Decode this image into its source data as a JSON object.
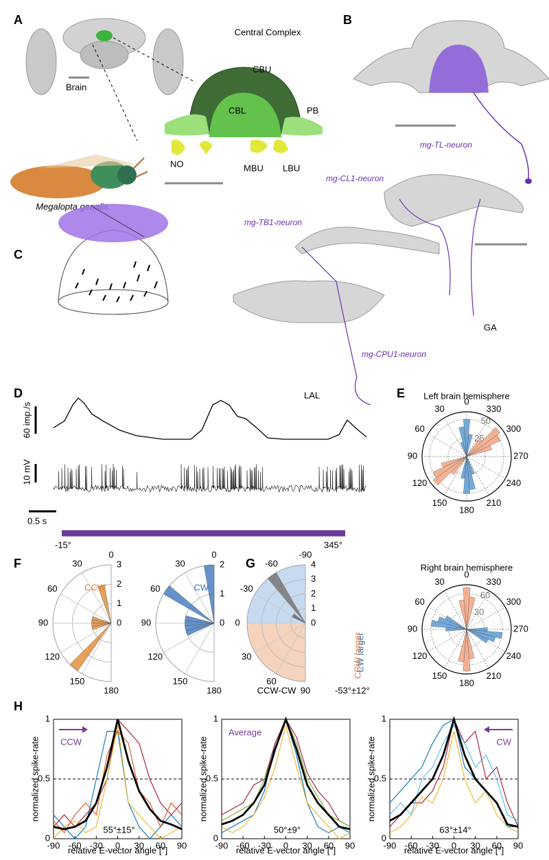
{
  "figure": {
    "panel_labels": [
      "A",
      "B",
      "C",
      "D",
      "E",
      "F",
      "G",
      "H"
    ],
    "a": {
      "title": "Central Complex",
      "brain": "Brain",
      "regions": [
        "CBU",
        "CBL",
        "PB",
        "NO",
        "MBU",
        "LBU"
      ],
      "species": "Megalopta genalis"
    },
    "b": {
      "neurons": [
        "mg-TL-neuron",
        "mg-CL1-neuron",
        "mg-TB1-neuron",
        "mg-CPU1-neuron"
      ],
      "regions": [
        "GA",
        "LAL"
      ]
    },
    "d": {
      "scale_rate": {
        "value": 60,
        "label": "60 imp./s"
      },
      "scale_voltage": {
        "value": 10,
        "label": "10 mV"
      },
      "scale_time": {
        "value": 0.5,
        "label": "0.5 s"
      },
      "stimulus_start": "-15°",
      "stimulus_end": "345°"
    },
    "g": {
      "cw": "CW larger",
      "ccw": "CCW larger",
      "xlabel": "CCW-CW",
      "mean": "-53°±12°"
    }
  },
  "chart_data": [
    {
      "type": "line",
      "color": "#000000",
      "x": [
        0,
        0.2,
        0.35,
        0.45,
        0.55,
        0.7,
        0.9,
        1.2,
        1.5,
        2.0,
        2.5,
        2.7,
        2.9,
        3.05,
        3.2,
        3.35,
        3.5,
        3.7,
        3.9,
        4.2,
        4.6,
        5.0,
        5.2,
        5.35,
        5.5,
        5.7
      ],
      "values": [
        25,
        40,
        75,
        90,
        80,
        55,
        40,
        20,
        8,
        0,
        0,
        20,
        75,
        85,
        75,
        50,
        45,
        25,
        3,
        0,
        0,
        0,
        10,
        42,
        25,
        5
      ]
    },
    {
      "type": "rose",
      "title": "Left brain hemisphere",
      "angle_zero": "top",
      "half": false,
      "angle_ticks": [
        0,
        30,
        60,
        90,
        120,
        150,
        180,
        210,
        240,
        270,
        300,
        330
      ],
      "rlim": [
        0,
        60
      ],
      "rticks": [
        25,
        50
      ],
      "series": [
        {
          "color": "#5b9bd5",
          "angles": [
            350,
            0,
            10,
            20,
            170,
            180,
            190,
            200
          ],
          "values": [
            30,
            50,
            40,
            20,
            30,
            50,
            45,
            25
          ]
        },
        {
          "color": "#f4a582",
          "angles": [
            290,
            300,
            310,
            320,
            110,
            120,
            130,
            140
          ],
          "values": [
            35,
            50,
            55,
            30,
            35,
            50,
            55,
            30
          ]
        }
      ]
    },
    {
      "type": "rose",
      "title": "Right brain hemisphere",
      "angle_zero": "top",
      "half": false,
      "angle_ticks": [
        0,
        30,
        60,
        90,
        120,
        150,
        180,
        210,
        240,
        270,
        300,
        330
      ],
      "rlim": [
        0,
        75
      ],
      "rticks": [
        30,
        60
      ],
      "series": [
        {
          "color": "#f4a582",
          "angles": [
            350,
            0,
            10,
            170,
            180,
            190
          ],
          "values": [
            55,
            70,
            50,
            55,
            70,
            50
          ]
        },
        {
          "color": "#5b9bd5",
          "angles": [
            60,
            70,
            80,
            90,
            240,
            250,
            260,
            270
          ],
          "values": [
            40,
            50,
            60,
            35,
            40,
            50,
            60,
            35
          ]
        }
      ]
    },
    {
      "type": "rose",
      "title": "CCW",
      "title_color": "#e07b39",
      "angle_zero": "top",
      "half": true,
      "angle_ticks": [
        0,
        30,
        60,
        90,
        120,
        150,
        180
      ],
      "rlim": [
        0,
        3
      ],
      "rticks": [
        0,
        1,
        2,
        3
      ],
      "series": [
        {
          "color": "#e0913f",
          "angles": [
            15,
            75,
            85,
            95,
            105,
            140
          ],
          "values": [
            2,
            1,
            1,
            1,
            1,
            3
          ]
        }
      ]
    },
    {
      "type": "rose",
      "title": "CW",
      "title_color": "#2f78c0",
      "angle_zero": "top",
      "half": true,
      "angle_ticks": [
        0,
        30,
        60,
        90,
        120,
        150,
        180
      ],
      "rlim": [
        0,
        2
      ],
      "rticks": [
        0,
        1,
        2
      ],
      "series": [
        {
          "color": "#4a7fc1",
          "angles": [
            5,
            55,
            80,
            90,
            100,
            110
          ],
          "values": [
            2,
            2,
            1,
            1,
            1,
            1
          ]
        }
      ]
    },
    {
      "type": "rose",
      "angle_zero": "left",
      "half": true,
      "angle_ticks": [
        -90,
        -60,
        -30,
        0,
        30,
        60,
        90
      ],
      "rlim": [
        0,
        4
      ],
      "rticks": [
        0,
        1,
        2,
        3,
        4
      ],
      "series": [
        {
          "color": "#777777",
          "angles": [
            -55,
            -35,
            -30
          ],
          "values": [
            4,
            1,
            1
          ]
        }
      ]
    },
    {
      "type": "line",
      "xlabel": "relative E-vector angle [°]",
      "ylabel": "normalized spike-rate",
      "annotation": "CCW",
      "summary": "55°±15°",
      "xlim": [
        -90,
        90
      ],
      "ylim": [
        0,
        1
      ],
      "xticks": [
        -90,
        -60,
        -30,
        0,
        30,
        60,
        90
      ],
      "yticks": [
        0,
        0.5,
        1
      ],
      "hline": 0.5,
      "x": [
        -90,
        -75,
        -60,
        -45,
        -30,
        -15,
        0,
        15,
        30,
        45,
        60,
        75,
        90
      ],
      "series": [
        {
          "color": "#0072bd",
          "values": [
            0.2,
            0.1,
            0,
            0.1,
            0.5,
            0.9,
            0.9,
            0.3,
            0.1,
            0,
            0.1,
            0.2,
            0.1
          ]
        },
        {
          "color": "#a2142f",
          "values": [
            0.1,
            0.2,
            0.1,
            0.2,
            0.3,
            0.5,
            1,
            0.9,
            0.8,
            0.5,
            0.3,
            0.2,
            0.3
          ]
        },
        {
          "color": "#edb120",
          "values": [
            0,
            0.1,
            0.15,
            0.05,
            0.1,
            0.5,
            0.95,
            0.3,
            0.2,
            0.1,
            0,
            0.05,
            0.1
          ]
        },
        {
          "color": "#d95319",
          "values": [
            0.15,
            0.05,
            0.2,
            0.3,
            0.2,
            0.7,
            0.9,
            0.8,
            0.4,
            0.3,
            0.1,
            0.3,
            0.2
          ]
        },
        {
          "color": "#000000",
          "values": [
            0.1,
            0.08,
            0.1,
            0.15,
            0.3,
            0.6,
            1,
            0.65,
            0.4,
            0.25,
            0.15,
            0.12,
            0.08
          ]
        }
      ]
    },
    {
      "type": "line",
      "xlabel": "relative E-vector angle [°]",
      "ylabel": "normalized spike-rate",
      "annotation": "Average",
      "summary": "50°±9°",
      "xlim": [
        -90,
        90
      ],
      "ylim": [
        0,
        1
      ],
      "xticks": [
        -90,
        -60,
        -30,
        0,
        30,
        60,
        90
      ],
      "yticks": [
        0,
        0.5,
        1
      ],
      "hline": 0.5,
      "x": [
        -90,
        -75,
        -60,
        -45,
        -30,
        -15,
        0,
        15,
        30,
        45,
        60,
        75,
        90
      ],
      "series": [
        {
          "color": "#0072bd",
          "values": [
            0.05,
            0.1,
            0.15,
            0.2,
            0.4,
            0.8,
            1,
            0.7,
            0.3,
            0.1,
            0.05,
            0.1,
            0.05
          ]
        },
        {
          "color": "#a2142f",
          "values": [
            0.2,
            0.25,
            0.3,
            0.45,
            0.5,
            0.8,
            1,
            0.85,
            0.55,
            0.4,
            0.3,
            0.15,
            0.1
          ]
        },
        {
          "color": "#edb120",
          "values": [
            0.1,
            0.05,
            0.1,
            0.2,
            0.35,
            0.6,
            0.95,
            0.6,
            0.3,
            0.2,
            0.1,
            0,
            0.05
          ]
        },
        {
          "color": "#77ac30",
          "values": [
            0.15,
            0.2,
            0.25,
            0.3,
            0.5,
            0.75,
            1,
            0.8,
            0.5,
            0.35,
            0.2,
            0.15,
            0.1
          ]
        },
        {
          "color": "#000000",
          "values": [
            0.12,
            0.15,
            0.2,
            0.3,
            0.45,
            0.75,
            1,
            0.75,
            0.45,
            0.3,
            0.2,
            0.1,
            0.08
          ]
        }
      ]
    },
    {
      "type": "line",
      "xlabel": "relative E-vector angle [°]",
      "ylabel": "normalized spike-rate",
      "annotation": "CW",
      "summary": "63°±14°",
      "xlim": [
        -90,
        90
      ],
      "ylim": [
        0,
        1
      ],
      "xticks": [
        -90,
        -60,
        -30,
        0,
        30,
        60,
        90
      ],
      "yticks": [
        0,
        0.5,
        1
      ],
      "hline": 0.5,
      "x": [
        -90,
        -75,
        -60,
        -45,
        -30,
        -15,
        0,
        15,
        30,
        45,
        60,
        75,
        90
      ],
      "series": [
        {
          "color": "#0072bd",
          "values": [
            0.3,
            0.4,
            0.5,
            0.6,
            0.8,
            0.95,
            1,
            0.6,
            0.5,
            0.4,
            0.3,
            0.1,
            0.1
          ]
        },
        {
          "color": "#a2142f",
          "values": [
            0.1,
            0.2,
            0.3,
            0.3,
            0.4,
            0.6,
            1,
            0.8,
            0.9,
            0.5,
            0.6,
            0.3,
            0.1
          ]
        },
        {
          "color": "#edb120",
          "values": [
            0.05,
            0.1,
            0.2,
            0.35,
            0.3,
            0.5,
            0.9,
            0.5,
            0.3,
            0.4,
            0.2,
            0.1,
            0.05
          ]
        },
        {
          "color": "#4dbeee",
          "values": [
            0.2,
            0.3,
            0.2,
            0.5,
            0.6,
            0.8,
            0.95,
            0.8,
            0.6,
            0.7,
            0.5,
            0.2,
            0.15
          ]
        },
        {
          "color": "#000000",
          "values": [
            0.15,
            0.2,
            0.3,
            0.4,
            0.5,
            0.7,
            1,
            0.7,
            0.5,
            0.4,
            0.3,
            0.12,
            0.1
          ]
        }
      ]
    }
  ]
}
